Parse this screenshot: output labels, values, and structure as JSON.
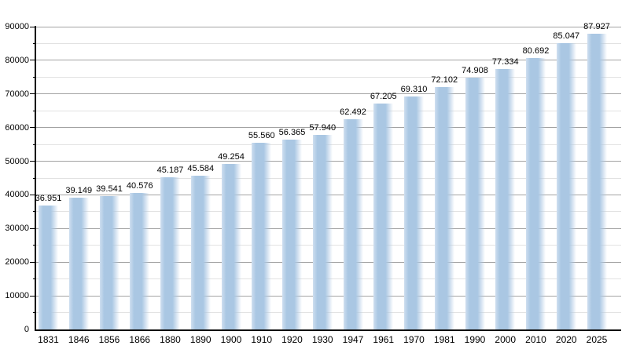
{
  "chart_data": {
    "type": "bar",
    "title": "",
    "xlabel": "",
    "ylabel": "",
    "categories": [
      "1831",
      "1846",
      "1856",
      "1866",
      "1880",
      "1890",
      "1900",
      "1910",
      "1920",
      "1930",
      "1947",
      "1961",
      "1970",
      "1981",
      "1990",
      "2000",
      "2010",
      "2020",
      "2025"
    ],
    "values": [
      36951,
      39149,
      39541,
      40576,
      45187,
      45584,
      49254,
      55560,
      56365,
      57940,
      62492,
      67205,
      69310,
      72102,
      74908,
      77334,
      80692,
      85047,
      87927
    ],
    "value_labels": [
      "36.951",
      "39.149",
      "39.541",
      "40.576",
      "45.187",
      "45.584",
      "49.254",
      "55.560",
      "56.365",
      "57.940",
      "62.492",
      "67.205",
      "69.310",
      "72.102",
      "74.908",
      "77.334",
      "80.692",
      "85.047",
      "87.927"
    ],
    "ylim": [
      0,
      90000
    ],
    "ytick_step": 10000,
    "ytick_minor_step": 5000,
    "ytick_labels": [
      "0",
      "10000",
      "20000",
      "30000",
      "40000",
      "50000",
      "60000",
      "70000",
      "80000",
      "90000"
    ],
    "grid": "horizontal major+minor",
    "legend": "none",
    "colors": {
      "background": "#ffffff",
      "bar_fill": "#aac7e3",
      "bar_fill_light_edge": "#cfdff0",
      "grid_major": "#a3a3a3",
      "grid_minor": "#e2e2e2",
      "axis": "#000000",
      "text": "#000000"
    }
  }
}
